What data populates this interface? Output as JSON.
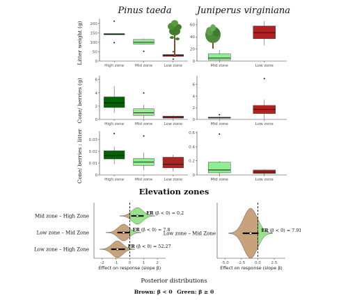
{
  "titles": {
    "left": "Pinus taeda",
    "right": "Juniperus virginiana",
    "middle": "Elevation zones",
    "posterior": "Posterior distributions",
    "legend_brown": "Brown: β < 0",
    "legend_green": "Green: β ≥ 0"
  },
  "colors": {
    "high": "#006400",
    "mid": "#90ee90",
    "low": "#b22222",
    "brown": "#c8a27a",
    "green": "#98e28a"
  },
  "chart_data": [
    {
      "type": "box",
      "panel": "pinus-litter",
      "ylabel": "Litter weight (g)",
      "ylim": [
        0,
        225
      ],
      "yticks": [
        0,
        50,
        100,
        150,
        200
      ],
      "categories": [
        "High zone",
        "Mid zone",
        "Low zone"
      ],
      "boxes": [
        {
          "category": "High zone",
          "color": "high",
          "q1": 140,
          "median": 143,
          "q3": 146,
          "whisker_low": 140,
          "whisker_high": 146,
          "outliers": [
            98,
            212
          ]
        },
        {
          "category": "Mid zone",
          "color": "mid",
          "q1": 90,
          "median": 100,
          "q3": 115,
          "whisker_low": 88,
          "whisker_high": 120,
          "outliers": [
            52
          ]
        },
        {
          "category": "Low zone",
          "color": "low",
          "q1": 25,
          "median": 30,
          "q3": 35,
          "whisker_low": 22,
          "whisker_high": 38,
          "outliers": [
            10,
            50
          ]
        }
      ]
    },
    {
      "type": "box",
      "panel": "juniperus-litter",
      "ylabel": "",
      "ylim": [
        0,
        70
      ],
      "yticks": [
        0,
        20,
        40,
        60
      ],
      "categories": [
        "Mid zone",
        "Low zone"
      ],
      "boxes": [
        {
          "category": "Mid zone",
          "color": "mid",
          "q1": 2,
          "median": 5,
          "q3": 12,
          "whisker_low": 0,
          "whisker_high": 18,
          "outliers": []
        },
        {
          "category": "Low zone",
          "color": "low",
          "q1": 37,
          "median": 47,
          "q3": 58,
          "whisker_low": 26,
          "whisker_high": 66,
          "outliers": []
        }
      ]
    },
    {
      "type": "box",
      "panel": "pinus-cone",
      "ylabel": "Cone/ berries (g)",
      "ylim": [
        0,
        6.6
      ],
      "yticks": [
        0,
        2,
        4,
        6
      ],
      "categories": [
        "High zone",
        "Mid zone",
        "Low zone"
      ],
      "boxes": [
        {
          "category": "High zone",
          "color": "high",
          "q1": 1.8,
          "median": 2.5,
          "q3": 3.4,
          "whisker_low": 1.0,
          "whisker_high": 5.0,
          "outliers": []
        },
        {
          "category": "Mid zone",
          "color": "mid",
          "q1": 0.6,
          "median": 1.0,
          "q3": 1.6,
          "whisker_low": 0.1,
          "whisker_high": 2.2,
          "outliers": [
            4.0
          ]
        },
        {
          "category": "Low zone",
          "color": "low",
          "q1": 0.2,
          "median": 0.3,
          "q3": 0.5,
          "whisker_low": 0.1,
          "whisker_high": 0.6,
          "outliers": []
        }
      ]
    },
    {
      "type": "box",
      "panel": "juniperus-cone",
      "ylabel": "",
      "ylim": [
        0,
        7.5
      ],
      "yticks": [
        0,
        2,
        4,
        6
      ],
      "categories": [
        "Mid zone",
        "Low zone"
      ],
      "boxes": [
        {
          "category": "Mid zone",
          "color": "mid",
          "q1": 0.2,
          "median": 0.3,
          "q3": 0.4,
          "whisker_low": 0.1,
          "whisker_high": 0.5,
          "outliers": [
            0.8
          ]
        },
        {
          "category": "Low zone",
          "color": "low",
          "q1": 1.0,
          "median": 1.7,
          "q3": 2.4,
          "whisker_low": 0.1,
          "whisker_high": 3.4,
          "outliers": [
            7.0
          ]
        }
      ]
    },
    {
      "type": "box",
      "panel": "pinus-ratio",
      "ylabel": "Cone/ berries : litter",
      "ylim": [
        0,
        0.037
      ],
      "yticks": [
        0,
        0.01,
        0.02,
        0.03
      ],
      "categories": [
        "High zone",
        "Mid zone",
        "Low zone"
      ],
      "boxes": [
        {
          "category": "High zone",
          "color": "high",
          "q1": 0.0135,
          "median": 0.0165,
          "q3": 0.0205,
          "whisker_low": 0.009,
          "whisker_high": 0.024,
          "outliers": [
            0.035
          ]
        },
        {
          "category": "Mid zone",
          "color": "mid",
          "q1": 0.008,
          "median": 0.011,
          "q3": 0.014,
          "whisker_low": 0.004,
          "whisker_high": 0.019,
          "outliers": [
            0.033
          ]
        },
        {
          "category": "Low zone",
          "color": "low",
          "q1": 0.006,
          "median": 0.009,
          "q3": 0.015,
          "whisker_low": 0.003,
          "whisker_high": 0.017,
          "outliers": []
        }
      ]
    },
    {
      "type": "box",
      "panel": "juniperus-ratio",
      "ylabel": "",
      "ylim": [
        0,
        0.62
      ],
      "yticks": [
        0,
        0.2,
        0.4,
        0.6
      ],
      "categories": [
        "Mid zone",
        "Low zone"
      ],
      "boxes": [
        {
          "category": "Mid zone",
          "color": "mid",
          "q1": 0.03,
          "median": 0.07,
          "q3": 0.18,
          "whisker_low": 0.0,
          "whisker_high": 0.2,
          "outliers": [
            0.58
          ]
        },
        {
          "category": "Low zone",
          "color": "low",
          "q1": 0.02,
          "median": 0.04,
          "q3": 0.07,
          "whisker_low": 0.0,
          "whisker_high": 0.08,
          "outliers": []
        }
      ]
    },
    {
      "type": "density",
      "panel": "pinus-posterior",
      "xlabel": "Effect on response (slope β)",
      "xlim": [
        -2.6,
        2.6
      ],
      "xticks": [
        -2,
        -1,
        0,
        1,
        2
      ],
      "rows": [
        {
          "label": "Mid zone – High Zone",
          "er_label": "ER",
          "er_condition": "(β < 0)",
          "er_value": "= 0.2",
          "mean": 0.55,
          "sd": 0.4,
          "ci": [
            0.1,
            1.0
          ]
        },
        {
          "label": "Low zone – Mid Zone",
          "er_label": "ER",
          "er_condition": "(β < 0)",
          "er_value": "= 7.8",
          "mean": -0.45,
          "sd": 0.4,
          "ci": [
            -0.9,
            0.0
          ]
        },
        {
          "label": "Low zone – High Zone",
          "er_label": "ER",
          "er_condition": "(β < 0)",
          "er_value": "= 52.27",
          "mean": -0.9,
          "sd": 0.4,
          "ci": [
            -1.35,
            -0.35
          ]
        }
      ]
    },
    {
      "type": "density",
      "panel": "juniperus-posterior",
      "xlabel": "Effect on response (slope β)",
      "xlim": [
        -6.2,
        4.2
      ],
      "xticks": [
        -5.0,
        -2.5,
        0.0,
        2.5
      ],
      "rows": [
        {
          "label": "Low zone – Mid Zone",
          "er_label": "ER",
          "er_condition": "(β < 0)",
          "er_value": "= 7.91",
          "mean": -1.1,
          "sd": 1.05,
          "ci": [
            -2.3,
            0.1
          ]
        }
      ]
    }
  ]
}
